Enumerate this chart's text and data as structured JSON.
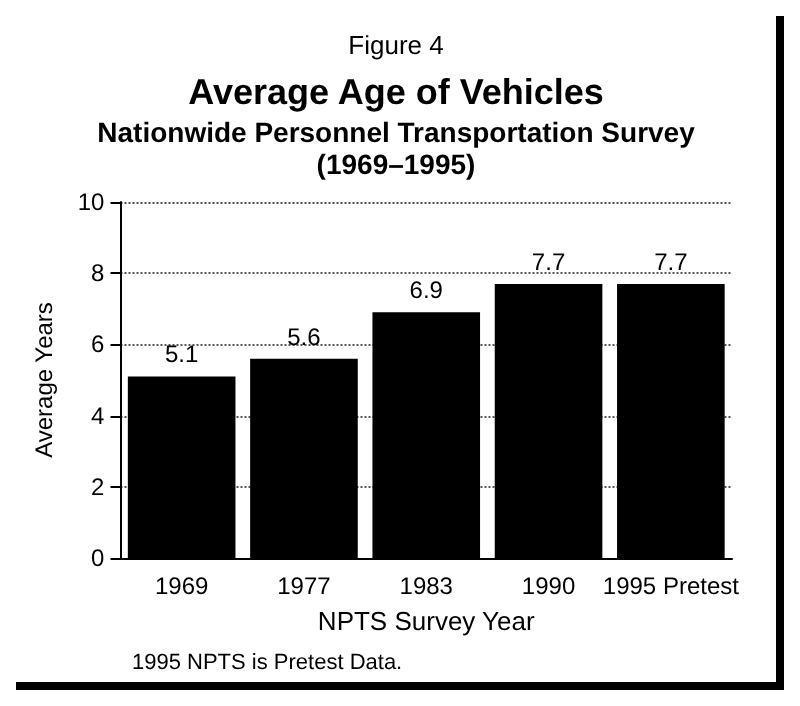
{
  "chart_data": {
    "type": "bar",
    "title": "Average Age of Vehicles",
    "subtitle": "Nationwide Personnel Transportation Survey\n(1969–1995)",
    "annotations": [
      "Figure 4",
      "1995 NPTS is Pretest Data."
    ],
    "xlabel": "NPTS Survey Year",
    "ylabel": "Average Years",
    "categories": [
      "1969",
      "1977",
      "1983",
      "1990",
      "1995 Pretest"
    ],
    "values": [
      5.1,
      5.6,
      6.9,
      7.7,
      7.7
    ],
    "color": "#000000",
    "ylim": [
      0,
      10
    ],
    "yticks": [
      0,
      2,
      4,
      6,
      8,
      10
    ],
    "grid": "y",
    "data_labels": true
  }
}
